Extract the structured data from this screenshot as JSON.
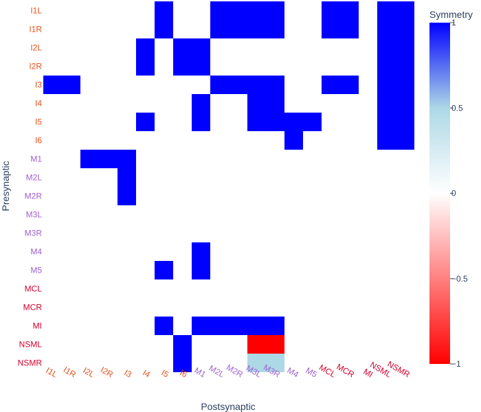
{
  "chart_data": {
    "type": "heatmap",
    "xlabel": "Postsynaptic",
    "ylabel": "Presynaptic",
    "neurons": [
      "I1L",
      "I1R",
      "I2L",
      "I2R",
      "I3",
      "I4",
      "I5",
      "I6",
      "M1",
      "M2L",
      "M2R",
      "M3L",
      "M3R",
      "M4",
      "M5",
      "MCL",
      "MCR",
      "MI",
      "NSML",
      "NSMR"
    ],
    "label_colors": {
      "I": "#e8501a",
      "M": "#a060d0",
      "other": "#d4002e"
    },
    "colorscale": {
      "title": "Symmetry",
      "min": -1,
      "max": 1,
      "stops": [
        [
          0,
          "#ff0000"
        ],
        [
          0.5,
          "#ffffff"
        ],
        [
          0.75,
          "#add8e6"
        ],
        [
          1,
          "#0000ff"
        ]
      ],
      "ticks": [
        1,
        0.5,
        0,
        -0.5,
        -1
      ],
      "tick_labels": [
        "1",
        "0.5",
        "0",
        "−0.5",
        "−1"
      ]
    },
    "cells": [
      {
        "row": "I1L",
        "col": "I5",
        "value": 1
      },
      {
        "row": "I1L",
        "col": "M2L",
        "value": 1
      },
      {
        "row": "I1L",
        "col": "M2R",
        "value": 1
      },
      {
        "row": "I1L",
        "col": "M3L",
        "value": 1
      },
      {
        "row": "I1L",
        "col": "M3R",
        "value": 1
      },
      {
        "row": "I1L",
        "col": "MCL",
        "value": 1
      },
      {
        "row": "I1L",
        "col": "MCR",
        "value": 1
      },
      {
        "row": "I1L",
        "col": "NSML",
        "value": 1
      },
      {
        "row": "I1L",
        "col": "NSMR",
        "value": 1
      },
      {
        "row": "I1R",
        "col": "I5",
        "value": 1
      },
      {
        "row": "I1R",
        "col": "M2L",
        "value": 1
      },
      {
        "row": "I1R",
        "col": "M2R",
        "value": 1
      },
      {
        "row": "I1R",
        "col": "M3L",
        "value": 1
      },
      {
        "row": "I1R",
        "col": "M3R",
        "value": 1
      },
      {
        "row": "I1R",
        "col": "MCL",
        "value": 1
      },
      {
        "row": "I1R",
        "col": "MCR",
        "value": 1
      },
      {
        "row": "I1R",
        "col": "NSML",
        "value": 1
      },
      {
        "row": "I1R",
        "col": "NSMR",
        "value": 1
      },
      {
        "row": "I2L",
        "col": "I4",
        "value": 1
      },
      {
        "row": "I2L",
        "col": "I6",
        "value": 1
      },
      {
        "row": "I2L",
        "col": "M1",
        "value": 1
      },
      {
        "row": "I2L",
        "col": "NSML",
        "value": 1
      },
      {
        "row": "I2L",
        "col": "NSMR",
        "value": 1
      },
      {
        "row": "I2R",
        "col": "I4",
        "value": 1
      },
      {
        "row": "I2R",
        "col": "I6",
        "value": 1
      },
      {
        "row": "I2R",
        "col": "M1",
        "value": 1
      },
      {
        "row": "I2R",
        "col": "NSML",
        "value": 1
      },
      {
        "row": "I2R",
        "col": "NSMR",
        "value": 1
      },
      {
        "row": "I3",
        "col": "I1L",
        "value": 1
      },
      {
        "row": "I3",
        "col": "I1R",
        "value": 1
      },
      {
        "row": "I3",
        "col": "M2L",
        "value": 1
      },
      {
        "row": "I3",
        "col": "M2R",
        "value": 1
      },
      {
        "row": "I3",
        "col": "M3L",
        "value": 1
      },
      {
        "row": "I3",
        "col": "M3R",
        "value": 1
      },
      {
        "row": "I3",
        "col": "MCL",
        "value": 1
      },
      {
        "row": "I3",
        "col": "MCR",
        "value": 1
      },
      {
        "row": "I3",
        "col": "NSML",
        "value": 1
      },
      {
        "row": "I3",
        "col": "NSMR",
        "value": 1
      },
      {
        "row": "I4",
        "col": "M1",
        "value": 1
      },
      {
        "row": "I4",
        "col": "M3L",
        "value": 1
      },
      {
        "row": "I4",
        "col": "M3R",
        "value": 1
      },
      {
        "row": "I4",
        "col": "NSML",
        "value": 1
      },
      {
        "row": "I4",
        "col": "NSMR",
        "value": 1
      },
      {
        "row": "I5",
        "col": "I4",
        "value": 1
      },
      {
        "row": "I5",
        "col": "M1",
        "value": 1
      },
      {
        "row": "I5",
        "col": "M3L",
        "value": 1
      },
      {
        "row": "I5",
        "col": "M3R",
        "value": 1
      },
      {
        "row": "I5",
        "col": "M4",
        "value": 1
      },
      {
        "row": "I5",
        "col": "M5",
        "value": 1
      },
      {
        "row": "I5",
        "col": "NSML",
        "value": 1
      },
      {
        "row": "I5",
        "col": "NSMR",
        "value": 1
      },
      {
        "row": "I6",
        "col": "M4",
        "value": 1
      },
      {
        "row": "I6",
        "col": "NSML",
        "value": 1
      },
      {
        "row": "I6",
        "col": "NSMR",
        "value": 1
      },
      {
        "row": "M1",
        "col": "I2L",
        "value": 1
      },
      {
        "row": "M1",
        "col": "I2R",
        "value": 1
      },
      {
        "row": "M1",
        "col": "I3",
        "value": 1
      },
      {
        "row": "M2L",
        "col": "I3",
        "value": 1
      },
      {
        "row": "M2R",
        "col": "I3",
        "value": 1
      },
      {
        "row": "M4",
        "col": "M1",
        "value": 1
      },
      {
        "row": "M5",
        "col": "I5",
        "value": 1
      },
      {
        "row": "M5",
        "col": "M1",
        "value": 1
      },
      {
        "row": "MI",
        "col": "I5",
        "value": 1
      },
      {
        "row": "MI",
        "col": "M1",
        "value": 1
      },
      {
        "row": "MI",
        "col": "M2L",
        "value": 1
      },
      {
        "row": "MI",
        "col": "M2R",
        "value": 1
      },
      {
        "row": "MI",
        "col": "M3L",
        "value": 1
      },
      {
        "row": "MI",
        "col": "M3R",
        "value": 1
      },
      {
        "row": "NSML",
        "col": "I6",
        "value": 1
      },
      {
        "row": "NSML",
        "col": "M3L",
        "value": -1
      },
      {
        "row": "NSML",
        "col": "M3R",
        "value": -1
      },
      {
        "row": "NSMR",
        "col": "I6",
        "value": 1
      },
      {
        "row": "NSMR",
        "col": "M3L",
        "value": 0.5
      },
      {
        "row": "NSMR",
        "col": "M3R",
        "value": 0.5
      }
    ]
  }
}
